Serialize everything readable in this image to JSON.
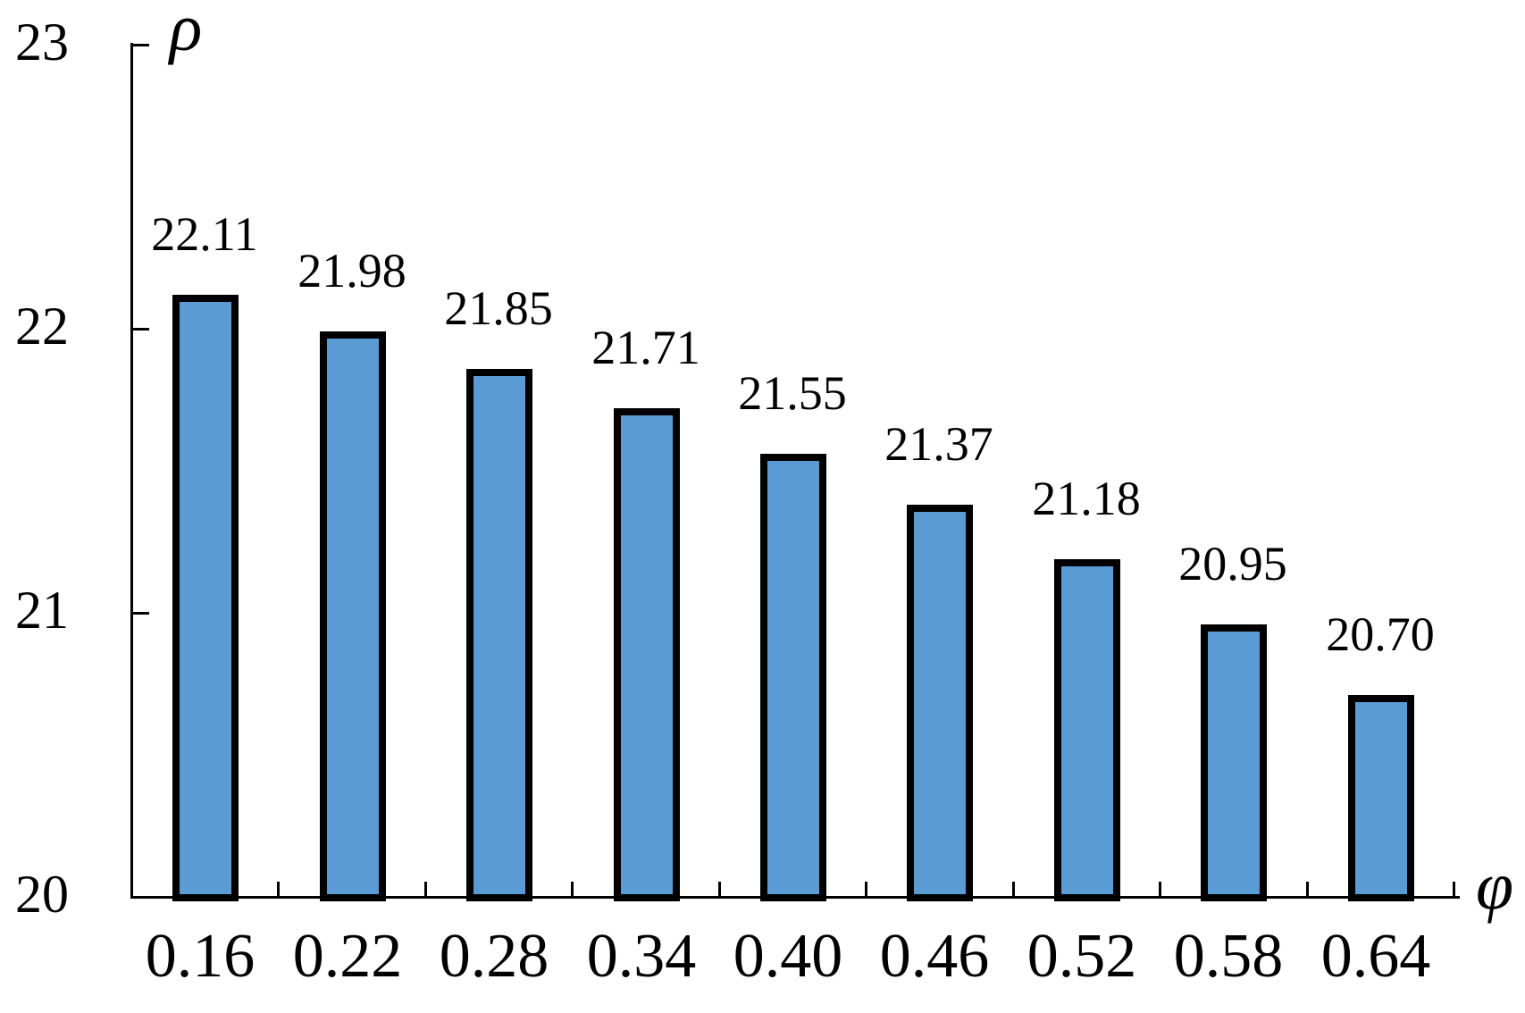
{
  "chart_data": {
    "type": "bar",
    "title": "",
    "xlabel": "φ",
    "ylabel": "ρ",
    "categories": [
      "0.16",
      "0.22",
      "0.28",
      "0.34",
      "0.40",
      "0.46",
      "0.52",
      "0.58",
      "0.64"
    ],
    "values": [
      22.11,
      21.98,
      21.85,
      21.71,
      21.55,
      21.37,
      21.18,
      20.95,
      20.7
    ],
    "bar_labels": [
      "22.11",
      "21.98",
      "21.85",
      "21.71",
      "21.55",
      "21.37",
      "21.18",
      "20.95",
      "20.70"
    ],
    "yticks": [
      {
        "value": 23,
        "label": "23"
      },
      {
        "value": 22,
        "label": "22"
      },
      {
        "value": 21,
        "label": "21"
      },
      {
        "value": 20,
        "label": "20"
      }
    ],
    "ylim": [
      20,
      23
    ],
    "grid": false,
    "legend": "none",
    "layout_hints": {
      "bar_value_labels_position": "above-bars",
      "x_ticks": "between-categories",
      "y_ticks": "inside-right-of-axis"
    },
    "colors": {
      "bar_fill": "#5B9BD5",
      "bar_border": "#000000",
      "axis": "#000000",
      "text": "#000000",
      "background": "#FFFFFF"
    }
  }
}
